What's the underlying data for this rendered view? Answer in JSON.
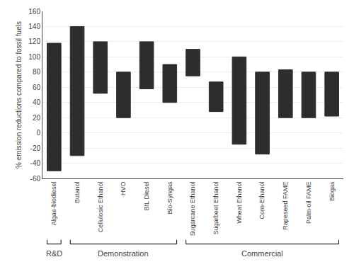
{
  "chart_data": {
    "type": "bar",
    "categories": [
      "Algae-biodiesel",
      "Butanol",
      "Cellulosic Ethanol",
      "HVO",
      "BtL Diesel",
      "Bio-Syngas",
      "Sugarcane Ethanol",
      "Sugarbeet Ethanol",
      "Wheat Ethanol",
      "Corn-Ethanol",
      "Rapeseed FAME",
      "Palm-oil FAME",
      "Biogas"
    ],
    "low": [
      -50,
      -30,
      52,
      20,
      58,
      40,
      75,
      28,
      -15,
      -28,
      20,
      20,
      22
    ],
    "high": [
      118,
      140,
      120,
      80,
      120,
      90,
      110,
      67,
      100,
      80,
      83,
      80,
      80
    ],
    "color": "#2d2d2d",
    "ylabel": "% emission reductions compared to fossil fuels",
    "ylim": [
      -60,
      160
    ],
    "yticks": [
      -60,
      -40,
      -20,
      0,
      20,
      40,
      60,
      80,
      100,
      120,
      140,
      160
    ],
    "grid": true,
    "groups": [
      {
        "label": "R&D",
        "first": "Algae-biodiesel",
        "last": "Algae-biodiesel"
      },
      {
        "label": "Demonstration",
        "first": "Butanol",
        "last": "Bio-Syngas"
      },
      {
        "label": "Commercial",
        "first": "Sugarcane Ethanol",
        "last": "Biogas"
      }
    ]
  }
}
